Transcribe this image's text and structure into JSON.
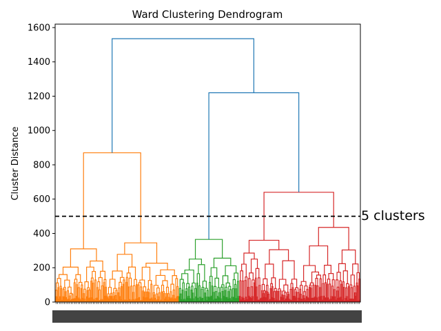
{
  "chart_data": {
    "type": "dendrogram",
    "title": "Ward Clustering Dendrogram",
    "xlabel": "",
    "ylabel": "Cluster Distance",
    "ylim": [
      0,
      1620
    ],
    "yticks": [
      0,
      200,
      400,
      600,
      800,
      1000,
      1200,
      1400,
      1600
    ],
    "x_tick_labels_overlapping": true,
    "threshold": {
      "y": 500,
      "style": "dashed",
      "color": "#000000",
      "label": "5 clusters"
    },
    "link_colors": {
      "orange": "#ff7f0e",
      "green": "#2ca02c",
      "red": "#d62728",
      "above_threshold": "#1f77b4"
    },
    "clusters": [
      {
        "color": "orange",
        "x_range": [
          0,
          0.405
        ],
        "merge_height": 870,
        "subclusters": [
          {
            "x_range": [
              0,
              0.17
            ],
            "height": 310
          },
          {
            "x_range": [
              0.17,
              0.405
            ],
            "height": 345
          }
        ]
      },
      {
        "color": "green",
        "x_range": [
          0.405,
          0.603
        ],
        "merge_height": 365
      },
      {
        "color": "red",
        "x_range": [
          0.603,
          1.0
        ],
        "merge_height": 640,
        "subclusters": [
          {
            "x_range": [
              0.603,
              0.8
            ],
            "height": 360
          },
          {
            "x_range": [
              0.8,
              1.0
            ],
            "height": 435
          }
        ]
      }
    ],
    "upper_links": [
      {
        "left": "orange",
        "right": "green+red",
        "height": 1535
      },
      {
        "left": "green",
        "right": "red",
        "height": 1220
      }
    ]
  }
}
